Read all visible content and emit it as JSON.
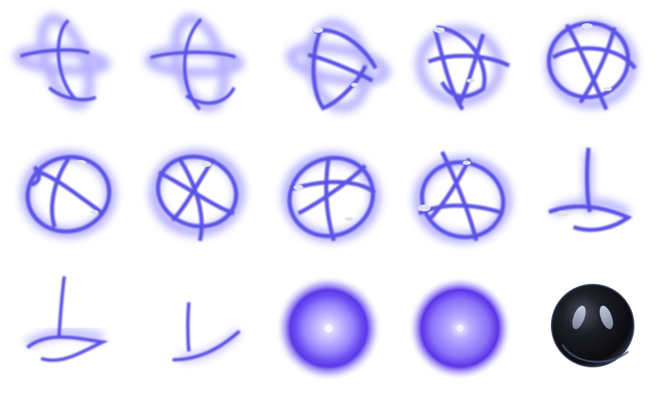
{
  "sprite_sheet": {
    "grid": {
      "columns": 5,
      "rows": 3
    },
    "colors": {
      "ring": "#5a52e6",
      "ring_glow": "#8a7cff",
      "highlight": "#e2e2ee",
      "orb_core": "#e8e6ff",
      "orb_outer": "#4e2ae0",
      "sphere_dark": "#0f0f14",
      "sphere_rim": "#30384f"
    },
    "frames": [
      {
        "kind": "ring-swirl",
        "index": 1
      },
      {
        "kind": "ring-swirl",
        "index": 2
      },
      {
        "kind": "ring-swirl",
        "index": 3
      },
      {
        "kind": "ring-swirl",
        "index": 4
      },
      {
        "kind": "ring-swirl",
        "index": 5
      },
      {
        "kind": "ring-swirl",
        "index": 6
      },
      {
        "kind": "ring-swirl",
        "index": 7
      },
      {
        "kind": "ring-swirl",
        "index": 8
      },
      {
        "kind": "ring-swirl",
        "index": 9
      },
      {
        "kind": "ring-fade",
        "index": 10
      },
      {
        "kind": "ring-fade",
        "index": 11
      },
      {
        "kind": "ring-fade",
        "index": 12
      },
      {
        "kind": "energy-orb",
        "index": 13
      },
      {
        "kind": "energy-orb",
        "index": 14
      },
      {
        "kind": "dark-sphere",
        "index": 15
      }
    ]
  }
}
